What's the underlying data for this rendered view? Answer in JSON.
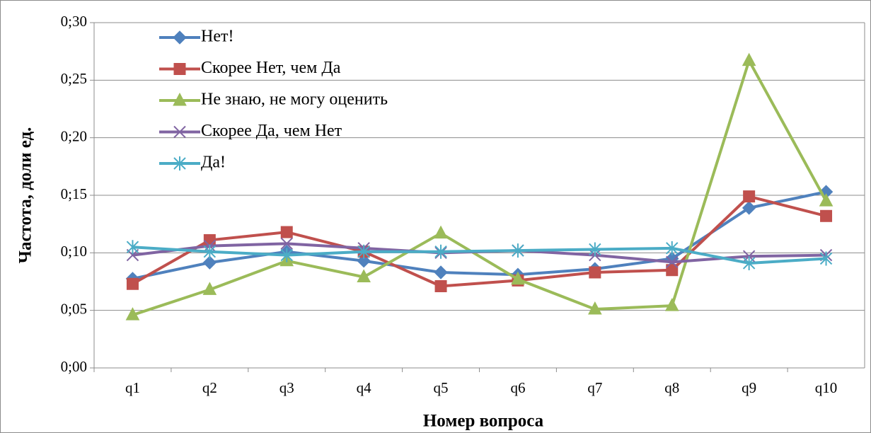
{
  "chart_data": {
    "type": "line",
    "categories": [
      "q1",
      "q2",
      "q3",
      "q4",
      "q5",
      "q6",
      "q7",
      "q8",
      "q9",
      "q10"
    ],
    "series": [
      {
        "name": "Нет!",
        "color": "#4f81bd",
        "marker": "diamond",
        "values": [
          0.0775,
          0.0915,
          0.101,
          0.093,
          0.083,
          0.081,
          0.086,
          0.095,
          0.139,
          0.153
        ]
      },
      {
        "name": "Скорее Нет, чем Да",
        "color": "#c0504d",
        "marker": "square",
        "values": [
          0.073,
          0.111,
          0.118,
          0.101,
          0.071,
          0.076,
          0.083,
          0.085,
          0.149,
          0.132
        ]
      },
      {
        "name": "Не знаю, не могу оценить",
        "color": "#9bbb59",
        "marker": "triangle",
        "values": [
          0.046,
          0.068,
          0.093,
          0.079,
          0.117,
          0.077,
          0.051,
          0.054,
          0.267,
          0.145
        ]
      },
      {
        "name": "Скорее Да, чем Нет",
        "color": "#8064a2",
        "marker": "x",
        "values": [
          0.098,
          0.106,
          0.108,
          0.104,
          0.1,
          0.102,
          0.098,
          0.092,
          0.097,
          0.098
        ]
      },
      {
        "name": "Да!",
        "color": "#4bacc6",
        "marker": "star",
        "values": [
          0.105,
          0.101,
          0.098,
          0.101,
          0.101,
          0.102,
          0.103,
          0.104,
          0.091,
          0.095
        ]
      }
    ],
    "xlabel": "Номер вопроса",
    "ylabel": "Частота, доли ед.",
    "ylim": [
      0,
      0.3
    ],
    "yticks": [
      {
        "value": 0,
        "label": "0;00"
      },
      {
        "value": 0.05,
        "label": "0;05"
      },
      {
        "value": 0.1,
        "label": "0;10"
      },
      {
        "value": 0.15,
        "label": "0;15"
      },
      {
        "value": 0.2,
        "label": "0;20"
      },
      {
        "value": 0.25,
        "label": "0;25"
      },
      {
        "value": 0.3,
        "label": "0;30"
      }
    ],
    "grid": true,
    "legend": "top-left"
  }
}
